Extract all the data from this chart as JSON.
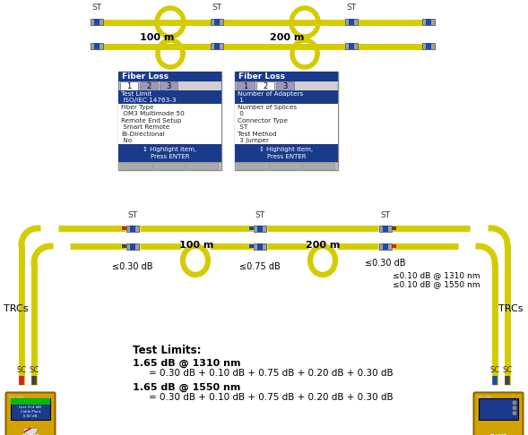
{
  "bg_color": "#ffffff",
  "cable_color": "#d4cc00",
  "conn_gray": "#a0a0a0",
  "conn_blue": "#1a4aaa",
  "conn_dark": "#444444",
  "conn_red": "#cc2222",
  "panel_bg": "#e8e8e8",
  "panel_header": "#1a3a8c",
  "panel_border": "#888888",
  "device_body": "#d4a200",
  "device_screen": "#1a3a8c",
  "label_st": "ST",
  "label_trcs": "TRCs",
  "label_sc": "SC",
  "label_100m": "100 m",
  "label_200m": "200 m",
  "loss_left": "≤0.30 dB",
  "loss_mid": "≤0.75 dB",
  "loss_right": "≤0.30 dB",
  "loss_splice1": "≤0.10 dB @ 1310 nm",
  "loss_splice2": "≤0.10 dB @ 1550 nm",
  "test_limits_title": "Test Limits:",
  "test_1310": "1.65 dB @ 1310 nm",
  "test_1310_eq": "= 0.30 dB + 0.10 dB + 0.75 dB + 0.20 dB + 0.30 dB",
  "test_1550": "1.65 dB @ 1550 nm",
  "test_1550_eq": "= 0.30 dB + 0.10 dB + 0.75 dB + 0.20 dB + 0.30 dB",
  "panel1_title": "Fiber Loss",
  "panel1_tabs": [
    "1",
    "2",
    "3"
  ],
  "panel1_active_tab": 0,
  "panel1_lines": [
    [
      "Test Limit",
      true
    ],
    [
      " ISO/IEC 14763-3",
      true
    ],
    [
      "Fiber Type",
      false
    ],
    [
      " OM3 Multimode 50",
      false
    ],
    [
      "Remote End Setup",
      false
    ],
    [
      " Smart Remote",
      false
    ],
    [
      "Bi-Directional",
      false
    ],
    [
      " No",
      false
    ]
  ],
  "panel1_footer": "↕ Highlight Item,\nPress ENTER",
  "panel2_title": "Fiber Loss",
  "panel2_tabs": [
    "1",
    "2",
    "3"
  ],
  "panel2_active_tab": 1,
  "panel2_lines": [
    [
      "Number of Adapters",
      true
    ],
    [
      " 1",
      true
    ],
    [
      "Number of Splices",
      false
    ],
    [
      " 0",
      false
    ],
    [
      "Connector Type",
      false
    ],
    [
      " ST",
      false
    ],
    [
      "Test Method",
      false
    ],
    [
      " 3 Jumper",
      false
    ]
  ],
  "panel2_footer": "↕ Highlight Item,\nPress ENTER"
}
